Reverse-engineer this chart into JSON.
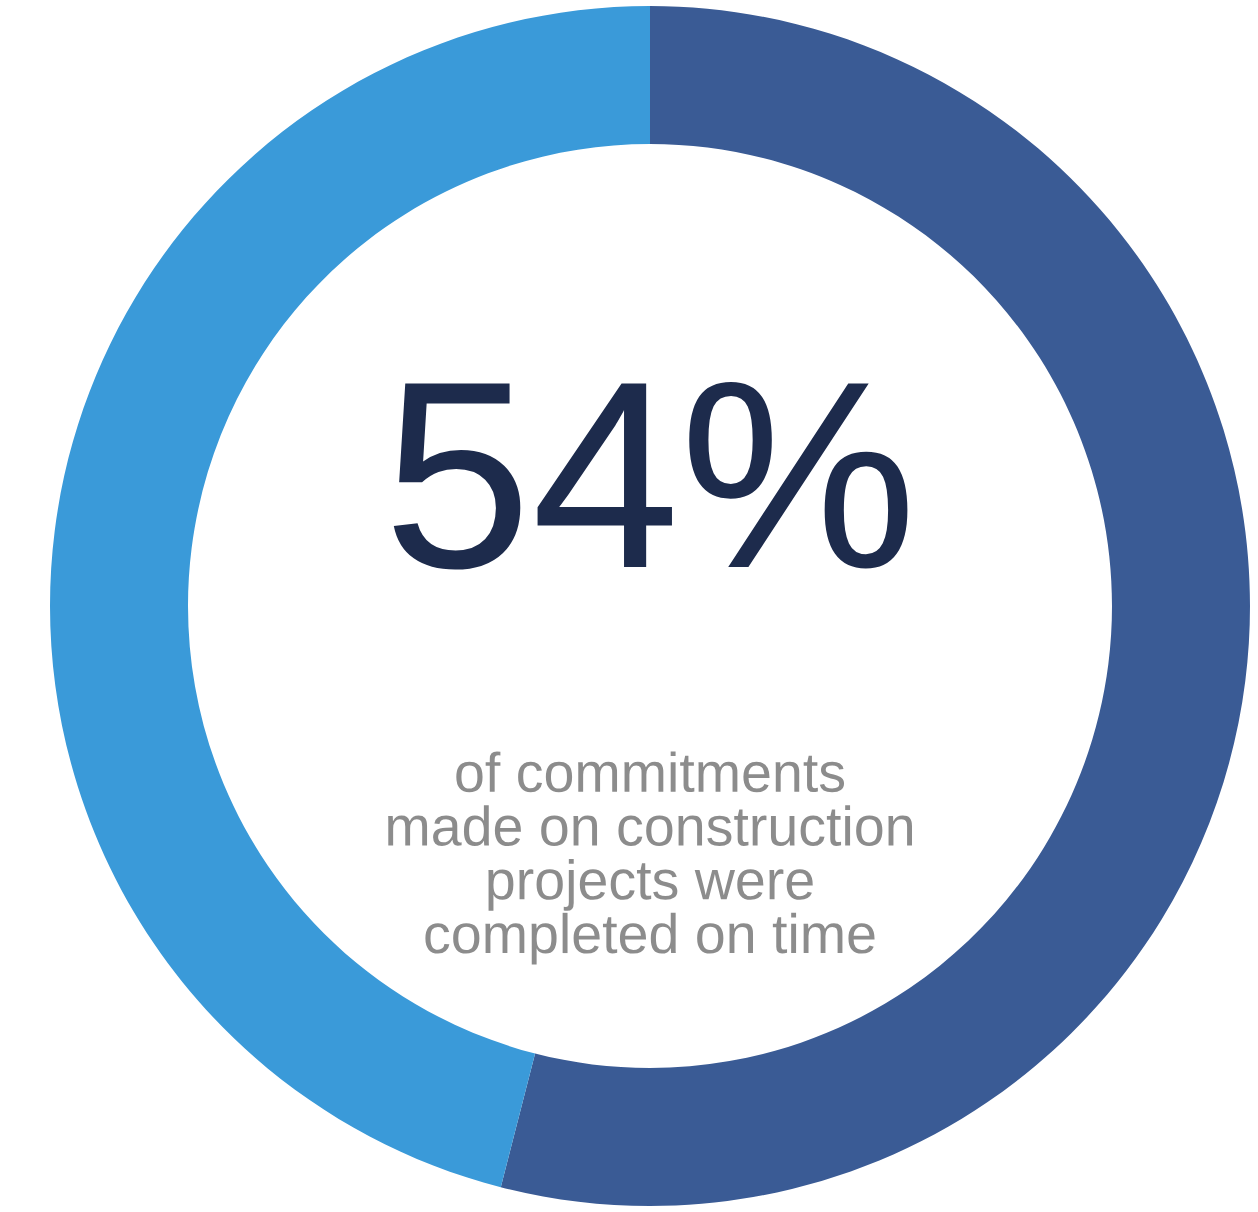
{
  "chart_data": {
    "type": "donut",
    "categories": [
      null,
      null
    ],
    "values": [
      54,
      46
    ],
    "colors": [
      "#3a5b95",
      "#3a9ad9"
    ],
    "annotations": [
      "54%",
      "of commitments\nmade on construction\nprojects were\ncompleted on time"
    ]
  }
}
